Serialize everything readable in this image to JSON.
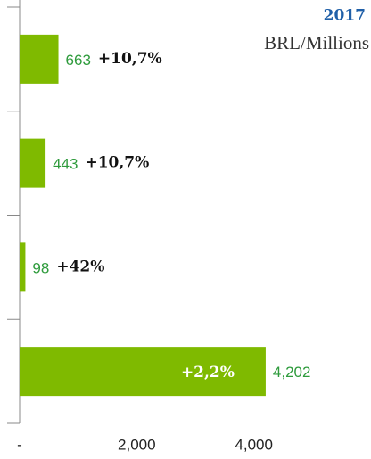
{
  "chart_data": {
    "type": "hbar",
    "subtitle": "2017",
    "unit_label": "BRL/Millions",
    "categories": [
      null,
      null,
      null,
      null
    ],
    "values": [
      663,
      443,
      98,
      4202
    ],
    "value_labels": [
      "663",
      "443",
      "98",
      "4,202"
    ],
    "annotations": [
      "+10,7%",
      "+10,7%",
      "+42%",
      "+2,2%"
    ],
    "color": "#7fba00",
    "xlim": [
      0,
      6000
    ],
    "xticks": [
      {
        "value": 0,
        "label": "-"
      },
      {
        "value": 2000,
        "label": "2,000"
      },
      {
        "value": 4000,
        "label": "4,000"
      }
    ]
  }
}
